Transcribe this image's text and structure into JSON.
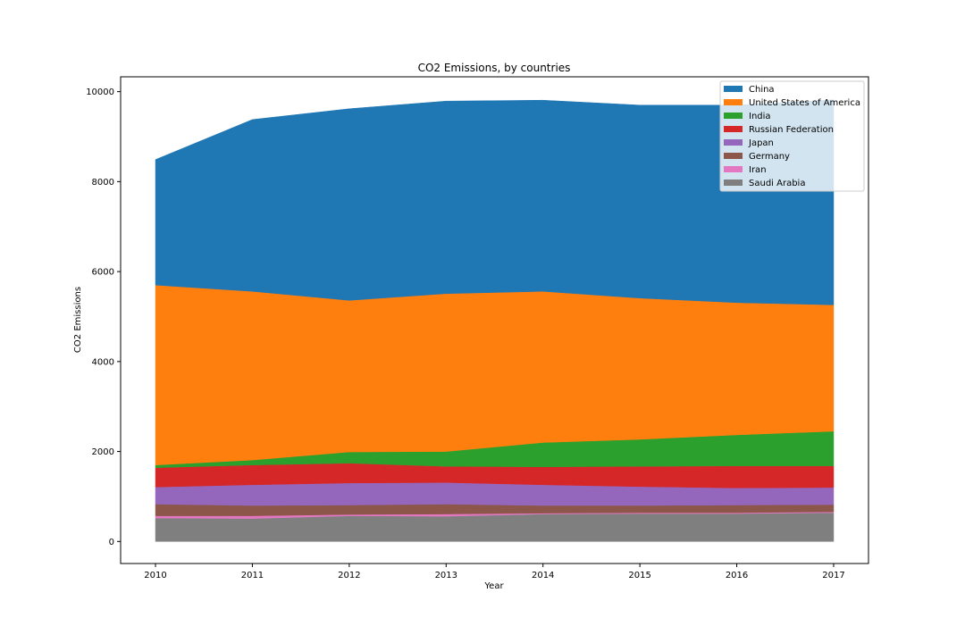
{
  "chart_data": {
    "type": "area",
    "stacked": true,
    "title": "CO2 Emissions, by countries",
    "xlabel": "Year",
    "ylabel": "CO2 Emissions",
    "x": [
      2010,
      2011,
      2012,
      2013,
      2014,
      2015,
      2016,
      2017
    ],
    "xticks": [
      "2010",
      "2011",
      "2012",
      "2013",
      "2014",
      "2015",
      "2016",
      "2017"
    ],
    "xlim": [
      2009.64,
      2017.36
    ],
    "ylim": [
      -490,
      10330
    ],
    "yticks": [
      0,
      2000,
      4000,
      6000,
      8000,
      10000
    ],
    "ytick_labels": [
      "0",
      "2000",
      "4000",
      "6000",
      "8000",
      "10000"
    ],
    "grid": false,
    "legend_position": "upper right",
    "series": [
      {
        "name": "Saudi Arabia",
        "color": "#7f7f7f",
        "values": [
          520,
          510,
          570,
          560,
          610,
          620,
          620,
          640
        ]
      },
      {
        "name": "Iran",
        "color": "#e377c2",
        "values": [
          50,
          60,
          30,
          50,
          20,
          20,
          20,
          20
        ]
      },
      {
        "name": "Germany",
        "color": "#8c564b",
        "values": [
          260,
          230,
          210,
          220,
          170,
          160,
          170,
          160
        ]
      },
      {
        "name": "Japan",
        "color": "#9467bd",
        "values": [
          380,
          460,
          490,
          480,
          460,
          420,
          380,
          380
        ]
      },
      {
        "name": "Russian Federation",
        "color": "#d62728",
        "values": [
          430,
          440,
          440,
          360,
          400,
          450,
          490,
          480
        ]
      },
      {
        "name": "India",
        "color": "#2ca02c",
        "values": [
          60,
          110,
          250,
          330,
          540,
          600,
          690,
          770
        ]
      },
      {
        "name": "United States of America",
        "color": "#ff7f0e",
        "values": [
          4000,
          3750,
          3370,
          3510,
          3360,
          3140,
          2940,
          2810
        ]
      },
      {
        "name": "China",
        "color": "#1f77b4",
        "values": [
          2790,
          3820,
          4260,
          4280,
          4250,
          4290,
          4390,
          4560
        ]
      }
    ],
    "legend_order": [
      "China",
      "United States of America",
      "India",
      "Russian Federation",
      "Japan",
      "Germany",
      "Iran",
      "Saudi Arabia"
    ]
  }
}
